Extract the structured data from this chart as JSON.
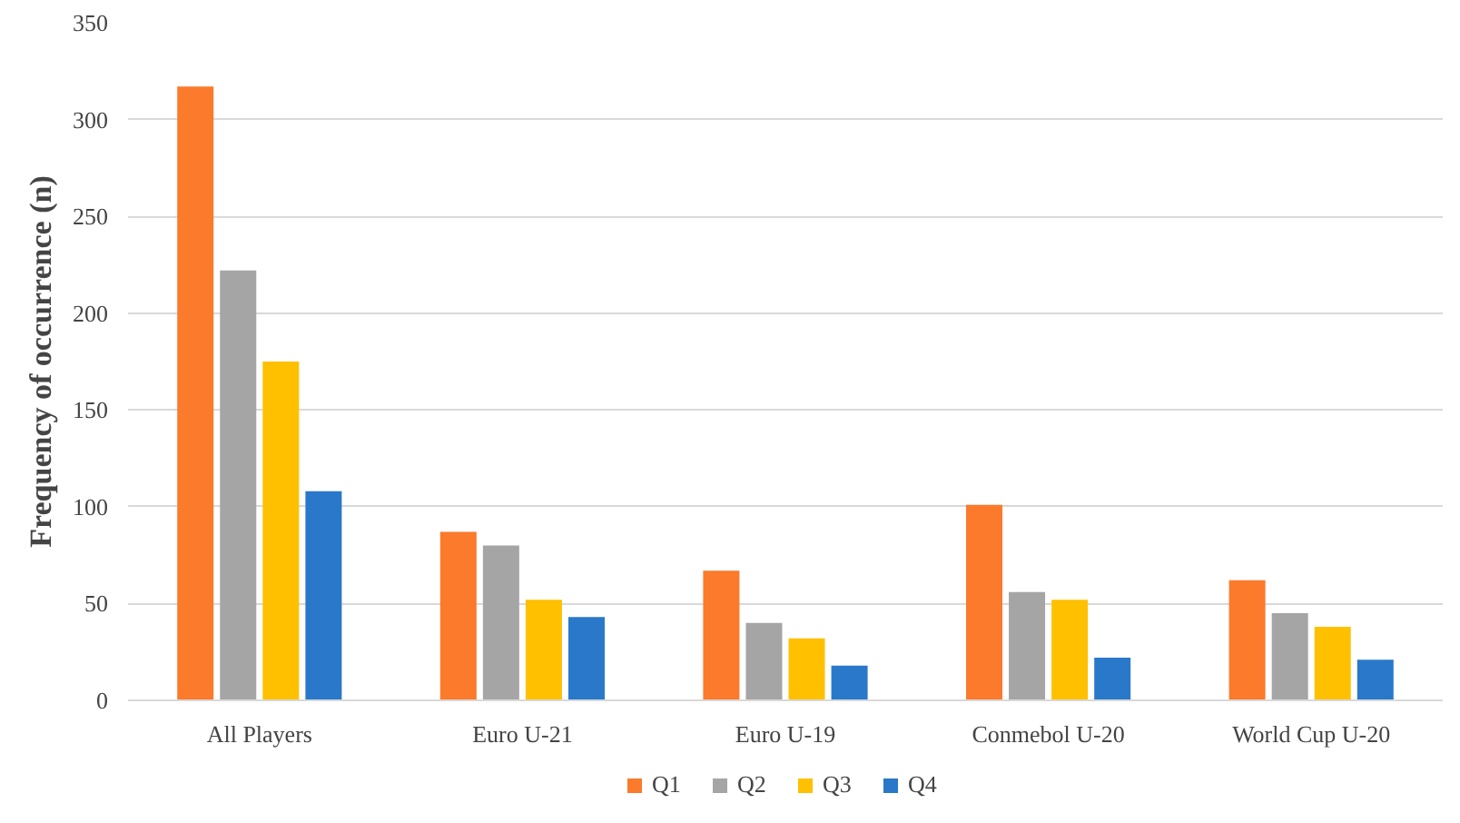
{
  "chart_data": {
    "type": "bar",
    "ylabel": "Frequency of occurrence (n)",
    "categories": [
      "All Players",
      "Euro U-21",
      "Euro U-19",
      "Conmebol U-20",
      "World Cup U-20"
    ],
    "series": [
      {
        "name": "Q1",
        "color": "#fb7a2b",
        "values": [
          317,
          87,
          67,
          101,
          62
        ]
      },
      {
        "name": "Q2",
        "color": "#a5a5a5",
        "values": [
          222,
          80,
          40,
          56,
          45
        ]
      },
      {
        "name": "Q3",
        "color": "#ffc000",
        "values": [
          175,
          52,
          32,
          52,
          38
        ]
      },
      {
        "name": "Q4",
        "color": "#2a78c9",
        "values": [
          108,
          43,
          18,
          22,
          21
        ]
      }
    ],
    "ylim": [
      0,
      350
    ],
    "yticks": [
      0,
      50,
      100,
      150,
      200,
      250,
      300,
      350
    ],
    "grid": "y",
    "legend": "bottom"
  }
}
